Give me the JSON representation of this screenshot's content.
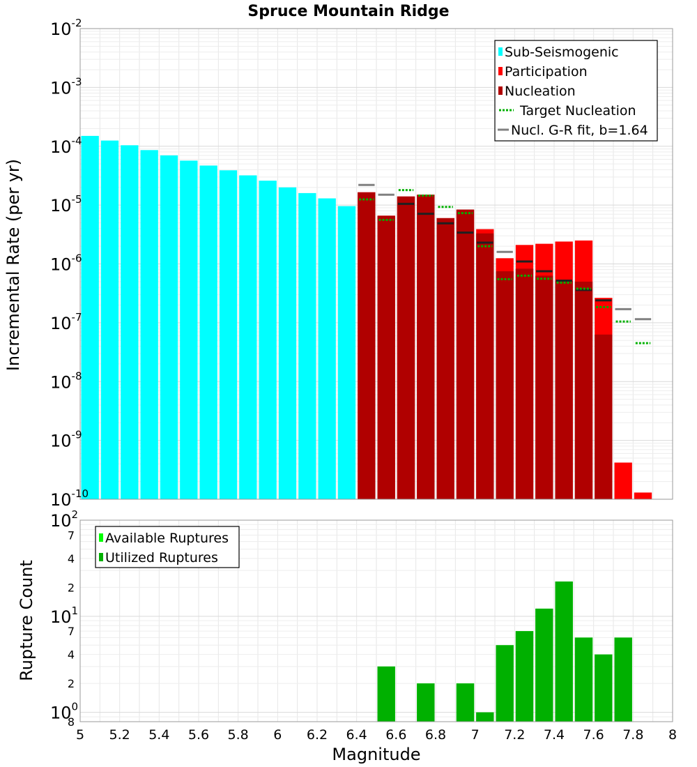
{
  "chart_data": [
    {
      "type": "bar",
      "title": "Spruce Mountain Ridge",
      "xlabel": "Magnitude",
      "ylabel": "Incremental Rate (per yr)",
      "yscale": "log",
      "xlim": [
        5,
        8
      ],
      "ylim": [
        1e-10,
        0.01
      ],
      "y_ticks": [
        {
          "base": "10",
          "exp": "-10",
          "value": 1e-10
        },
        {
          "base": "10",
          "exp": "-9",
          "value": 1e-09
        },
        {
          "base": "10",
          "exp": "-8",
          "value": 1e-08
        },
        {
          "base": "10",
          "exp": "-7",
          "value": 1e-07
        },
        {
          "base": "10",
          "exp": "-6",
          "value": 1e-06
        },
        {
          "base": "10",
          "exp": "-5",
          "value": 1e-05
        },
        {
          "base": "10",
          "exp": "-4",
          "value": 0.0001
        },
        {
          "base": "10",
          "exp": "-3",
          "value": 0.001
        },
        {
          "base": "10",
          "exp": "-2",
          "value": 0.01
        }
      ],
      "series": [
        {
          "name": "Sub-Seismogenic",
          "color": "#00FFFF",
          "x": [
            5.05,
            5.15,
            5.25,
            5.35,
            5.45,
            5.55,
            5.65,
            5.75,
            5.85,
            5.95,
            6.05,
            6.15,
            6.25,
            6.35
          ],
          "values": [
            0.00015,
            0.000125,
            0.000104,
            8.6e-05,
            7e-05,
            5.7e-05,
            4.7e-05,
            3.9e-05,
            3.2e-05,
            2.6e-05,
            2e-05,
            1.6e-05,
            1.3e-05,
            9.6e-06
          ]
        },
        {
          "name": "Participation",
          "color": "#FF0000",
          "x": [
            6.45,
            6.55,
            6.65,
            6.75,
            6.85,
            6.95,
            7.05,
            7.15,
            7.25,
            7.35,
            7.45,
            7.55,
            7.65,
            7.75,
            7.85
          ],
          "values": [
            1.65e-05,
            6.6e-06,
            1.4e-05,
            1.5e-05,
            6e-06,
            8.4e-06,
            3.9e-06,
            1.25e-06,
            2.1e-06,
            2.2e-06,
            2.4e-06,
            2.5e-06,
            2.65e-07,
            4.2e-10,
            1.3e-10
          ]
        },
        {
          "name": "Nucleation",
          "color": "#B00000",
          "x": [
            6.45,
            6.55,
            6.65,
            6.75,
            6.85,
            6.95,
            7.05,
            7.15,
            7.25,
            7.35,
            7.45,
            7.55,
            7.65
          ],
          "values": [
            1.65e-05,
            6.6e-06,
            1.4e-05,
            1.5e-05,
            6e-06,
            8.4e-06,
            3.3e-06,
            7.5e-07,
            8.3e-07,
            6.3e-07,
            5.1e-07,
            5e-07,
            6.3e-08
          ]
        },
        {
          "name": "Target Nucleation",
          "color": "#00B000",
          "style": "dotted",
          "x": [
            6.45,
            6.55,
            6.65,
            6.75,
            6.85,
            6.95,
            7.05,
            7.15,
            7.25,
            7.35,
            7.45,
            7.55,
            7.65,
            7.75,
            7.85
          ],
          "values": [
            1.25e-05,
            5.6e-06,
            1.8e-05,
            1.45e-05,
            9.3e-06,
            7.3e-06,
            2e-06,
            5.5e-07,
            6.3e-07,
            5.6e-07,
            4.8e-07,
            3.8e-07,
            1.85e-07,
            1.05e-07,
            4.5e-08
          ]
        },
        {
          "name": "Nucl. G-R fit, b=1.64",
          "color": "#808080",
          "style": "solid",
          "x": [
            6.45,
            6.55,
            6.65,
            6.75,
            6.85,
            6.95,
            7.05,
            7.15,
            7.25,
            7.35,
            7.45,
            7.55,
            7.65,
            7.75,
            7.85
          ],
          "values": [
            2.2e-05,
            1.5e-05,
            1.05e-05,
            7.1e-06,
            4.9e-06,
            3.4e-06,
            2.3e-06,
            1.6e-06,
            1.1e-06,
            7.5e-07,
            5.2e-07,
            3.6e-07,
            2.4e-07,
            1.7e-07,
            1.15e-07
          ]
        }
      ]
    },
    {
      "type": "bar",
      "xlabel": "Magnitude",
      "ylabel": "Rupture Count",
      "yscale": "log",
      "xlim": [
        5,
        8
      ],
      "ylim": [
        0.8,
        100
      ],
      "x_ticks": [
        "5",
        "5.2",
        "5.4",
        "5.6",
        "5.8",
        "6",
        "6.2",
        "6.4",
        "6.6",
        "6.8",
        "7",
        "7.2",
        "7.4",
        "7.6",
        "7.8",
        "8"
      ],
      "y_ticks": [
        {
          "base": "10",
          "exp": "0",
          "value": 1
        },
        {
          "base": "10",
          "exp": "1",
          "value": 10
        },
        {
          "base": "10",
          "exp": "2",
          "value": 100
        }
      ],
      "y_minor_labels": [
        {
          "label": "8",
          "value": 0.8
        },
        {
          "label": "2",
          "value": 2
        },
        {
          "label": "4",
          "value": 4
        },
        {
          "label": "7",
          "value": 7
        },
        {
          "label": "2",
          "value": 20
        },
        {
          "label": "4",
          "value": 40
        },
        {
          "label": "7",
          "value": 70
        }
      ],
      "series": [
        {
          "name": "Available Ruptures",
          "color": "#00FF00",
          "x": [
            6.55,
            6.75,
            6.95,
            7.05,
            7.15,
            7.25,
            7.35,
            7.45,
            7.55,
            7.65,
            7.75
          ],
          "values": [
            3,
            2,
            2,
            1,
            5,
            7,
            12,
            23,
            6,
            4,
            6
          ]
        },
        {
          "name": "Utilized Ruptures",
          "color": "#00B000",
          "x": [
            6.55,
            6.75,
            6.95,
            7.05,
            7.15,
            7.25,
            7.35,
            7.45,
            7.55,
            7.65,
            7.75
          ],
          "values": [
            3,
            2,
            2,
            1,
            5,
            7,
            12,
            23,
            6,
            4,
            6
          ]
        }
      ]
    }
  ]
}
